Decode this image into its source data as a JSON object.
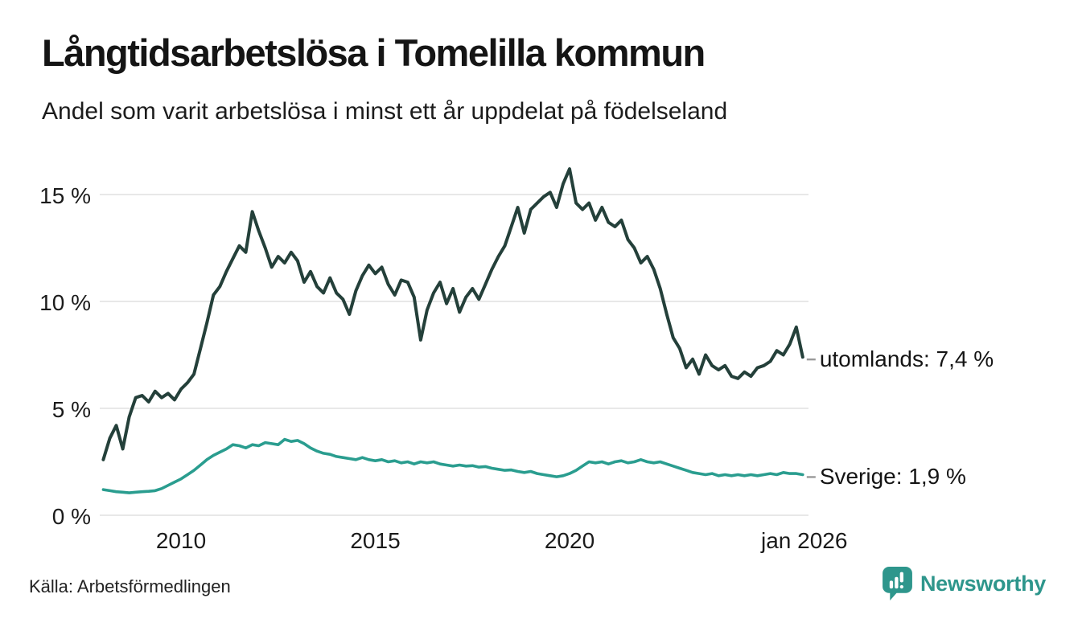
{
  "header": {
    "title": "Långtidsarbetslösa i Tomelilla kommun",
    "subtitle": "Andel som varit arbetslösa i minst ett år uppdelat på födelseland"
  },
  "chart_data": {
    "type": "line",
    "title": "Långtidsarbetslösa i Tomelilla kommun",
    "subtitle": "Andel som varit arbetslösa i minst ett år uppdelat på födelseland",
    "unit": "%",
    "grid": true,
    "grid_color": "#e0e0e0",
    "dash_color": "#999999",
    "legend_position": "end-of-line",
    "x_axis": {
      "label": "",
      "min": 2008.0,
      "max": 2026.3,
      "ticks": [
        {
          "label": "2010",
          "value": 2010
        },
        {
          "label": "2015",
          "value": 2015
        },
        {
          "label": "2020",
          "value": 2020
        },
        {
          "label": "jan 2026",
          "value": 2026.04
        }
      ]
    },
    "y_axis": {
      "label": "",
      "min": 0,
      "max": 16.5,
      "ticks": [
        {
          "label": "0 %",
          "value": 0
        },
        {
          "label": "5 %",
          "value": 5
        },
        {
          "label": "10 %",
          "value": 10
        },
        {
          "label": "15 %",
          "value": 15
        }
      ]
    },
    "series": [
      {
        "name": "utomlands",
        "end_label": "utomlands: 7,4 %",
        "last_value": 7.4,
        "color": "#24403a",
        "stroke_width": 4,
        "x_start": 2008.0,
        "x_step": 0.16667,
        "values": [
          2.6,
          3.6,
          4.2,
          3.1,
          4.6,
          5.5,
          5.6,
          5.3,
          5.8,
          5.5,
          5.7,
          5.4,
          5.9,
          6.2,
          6.6,
          7.8,
          9.0,
          10.3,
          10.7,
          11.4,
          12.0,
          12.6,
          12.3,
          14.2,
          13.3,
          12.5,
          11.6,
          12.1,
          11.8,
          12.3,
          11.9,
          10.9,
          11.4,
          10.7,
          10.4,
          11.1,
          10.4,
          10.1,
          9.4,
          10.5,
          11.2,
          11.7,
          11.3,
          11.6,
          10.8,
          10.3,
          11.0,
          10.9,
          10.2,
          8.2,
          9.6,
          10.4,
          10.9,
          9.9,
          10.6,
          9.5,
          10.2,
          10.6,
          10.1,
          10.8,
          11.5,
          12.1,
          12.6,
          13.5,
          14.4,
          13.2,
          14.3,
          14.6,
          14.9,
          15.1,
          14.4,
          15.5,
          16.2,
          14.6,
          14.3,
          14.6,
          13.8,
          14.4,
          13.7,
          13.5,
          13.8,
          12.9,
          12.5,
          11.8,
          12.1,
          11.5,
          10.6,
          9.4,
          8.3,
          7.8,
          6.9,
          7.3,
          6.6,
          7.5,
          7.0,
          6.8,
          7.0,
          6.5,
          6.4,
          6.7,
          6.5,
          6.9,
          7.0,
          7.2,
          7.7,
          7.5,
          8.0,
          8.8,
          7.4
        ]
      },
      {
        "name": "Sverige",
        "end_label": "Sverige: 1,9 %",
        "last_value": 1.9,
        "color": "#2a9d8f",
        "stroke_width": 3.6,
        "x_start": 2008.0,
        "x_step": 0.16667,
        "values": [
          1.2,
          1.15,
          1.1,
          1.08,
          1.05,
          1.08,
          1.1,
          1.12,
          1.15,
          1.25,
          1.4,
          1.55,
          1.7,
          1.9,
          2.1,
          2.35,
          2.6,
          2.8,
          2.95,
          3.1,
          3.3,
          3.25,
          3.15,
          3.3,
          3.25,
          3.4,
          3.35,
          3.3,
          3.55,
          3.45,
          3.5,
          3.35,
          3.15,
          3.0,
          2.9,
          2.85,
          2.75,
          2.7,
          2.65,
          2.6,
          2.7,
          2.6,
          2.55,
          2.6,
          2.5,
          2.55,
          2.45,
          2.5,
          2.4,
          2.5,
          2.45,
          2.5,
          2.4,
          2.35,
          2.3,
          2.35,
          2.3,
          2.32,
          2.25,
          2.28,
          2.2,
          2.15,
          2.1,
          2.12,
          2.05,
          2.0,
          2.05,
          1.95,
          1.9,
          1.85,
          1.8,
          1.85,
          1.95,
          2.1,
          2.3,
          2.5,
          2.45,
          2.5,
          2.4,
          2.5,
          2.55,
          2.45,
          2.5,
          2.6,
          2.5,
          2.45,
          2.5,
          2.4,
          2.3,
          2.2,
          2.1,
          2.0,
          1.95,
          1.9,
          1.95,
          1.85,
          1.9,
          1.85,
          1.9,
          1.85,
          1.9,
          1.85,
          1.9,
          1.95,
          1.9,
          2.0,
          1.95,
          1.95,
          1.9
        ]
      }
    ]
  },
  "footer": {
    "source": "Källa: Arbetsförmedlingen",
    "brand": "Newsworthy",
    "brand_color": "#2e968c"
  }
}
